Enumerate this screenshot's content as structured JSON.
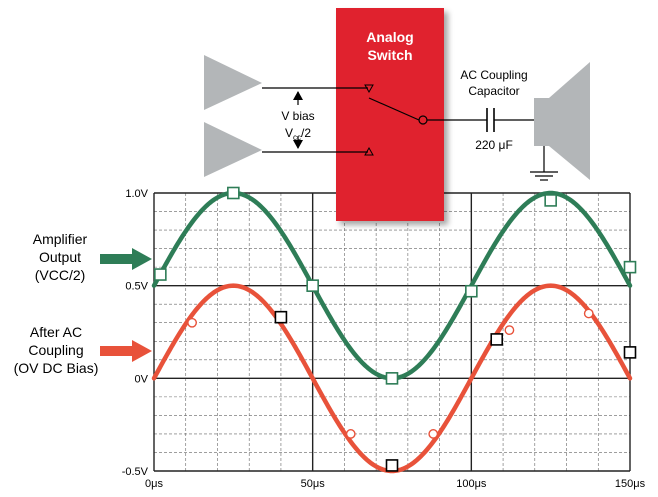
{
  "chart_data": {
    "type": "line",
    "x_unit": "μs",
    "y_unit": "V",
    "xlim": [
      0,
      150
    ],
    "ylim": [
      -0.5,
      1.0
    ],
    "x_ticks": [
      0,
      50,
      100,
      150
    ],
    "x_tick_labels": [
      "0μs",
      "50μs",
      "100μs",
      "150μs"
    ],
    "y_ticks": [
      -0.5,
      0,
      0.5,
      1.0
    ],
    "y_tick_labels": [
      "-0.5V",
      "0V",
      "0.5V",
      "1.0V"
    ],
    "grid": true,
    "series": [
      {
        "color": "#2e7d57",
        "marker": "square-hollow",
        "function": "0.5 + 0.5*sin(2*pi*(x-0)/100)",
        "x": [
          0,
          12.5,
          25,
          37.5,
          50,
          62.5,
          75,
          87.5,
          100,
          112.5,
          125,
          137.5,
          150
        ],
        "values": [
          0.5,
          0.854,
          1.0,
          0.854,
          0.5,
          0.146,
          0.0,
          0.146,
          0.5,
          0.854,
          1.0,
          0.854,
          0.5
        ],
        "markers": [
          [
            2,
            0.56
          ],
          [
            25,
            1.0
          ],
          [
            50,
            0.5
          ],
          [
            75,
            0.0
          ],
          [
            100,
            0.47
          ],
          [
            125,
            0.96
          ],
          [
            150,
            0.6
          ]
        ]
      },
      {
        "color": "#e8523a",
        "marker": "circle-hollow",
        "function": "0.5*sin(2*pi*x/100)",
        "x": [
          0,
          12.5,
          25,
          37.5,
          50,
          62.5,
          75,
          87.5,
          100,
          112.5,
          125,
          137.5,
          150
        ],
        "values": [
          0.0,
          0.354,
          0.5,
          0.354,
          0.0,
          -0.354,
          -0.5,
          -0.354,
          0.0,
          0.354,
          0.5,
          0.354,
          0.0
        ],
        "markers": [
          [
            12,
            0.3
          ],
          [
            62,
            -0.3
          ],
          [
            88,
            -0.3
          ],
          [
            112,
            0.26
          ],
          [
            137,
            0.35
          ]
        ]
      }
    ],
    "black_markers": [
      [
        40,
        0.33
      ],
      [
        75,
        -0.47
      ],
      [
        108,
        0.21
      ],
      [
        150,
        0.14
      ]
    ]
  },
  "labels": {
    "amplifier_output_line1": "Amplifier",
    "amplifier_output_line2": "Output",
    "amplifier_output_line3": "(VCC/2)",
    "after_ac_line1": "After AC",
    "after_ac_line2": "Coupling",
    "after_ac_line3": "(OV DC Bias)",
    "analog_switch_line1": "Analog",
    "analog_switch_line2": "Switch",
    "v_bias": "V bias",
    "vcc_half_main": "V",
    "vcc_half_sub": "cc",
    "vcc_half_tail": "/2",
    "ac_coupling_line1": "AC Coupling",
    "ac_coupling_line2": "Capacitor",
    "capacitor_value": "220 μF"
  },
  "colors": {
    "green": "#2e7d57",
    "red": "#e8523a",
    "switch_red": "#e0222d",
    "amp_gray": "#b3b6b8",
    "grid": "#666666"
  }
}
